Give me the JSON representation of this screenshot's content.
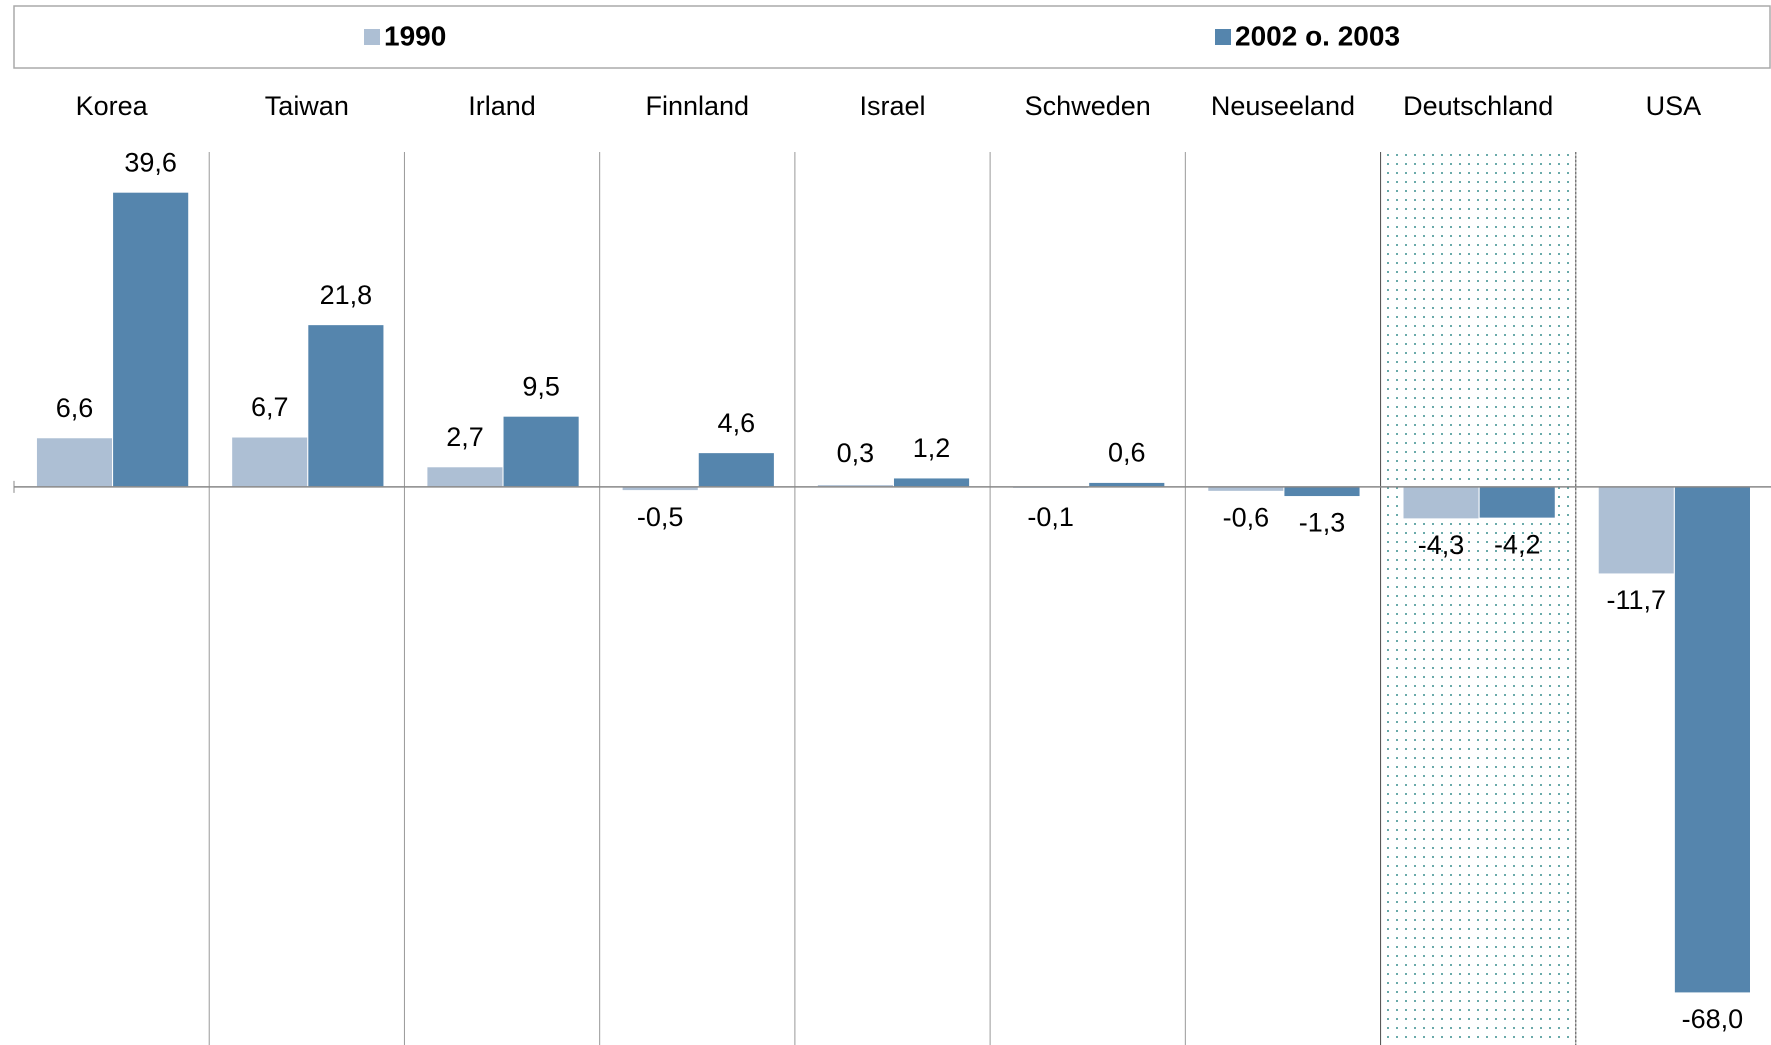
{
  "chart_data": {
    "type": "bar",
    "categories": [
      "Korea",
      "Taiwan",
      "Irland",
      "Finnland",
      "Israel",
      "Schweden",
      "Neuseeland",
      "Deutschland",
      "USA"
    ],
    "series": [
      {
        "name": "1990",
        "color": "#adbfd4",
        "values": [
          6.6,
          6.7,
          2.7,
          -0.5,
          0.3,
          -0.1,
          -0.6,
          -4.3,
          -11.7
        ],
        "value_labels": [
          "6,6",
          "6,7",
          "2,7",
          "-0,5",
          "0,3",
          "-0,1",
          "-0,6",
          "-4,3",
          "-11,7"
        ]
      },
      {
        "name": "2002 o. 2003",
        "color": "#5585ad",
        "values": [
          39.6,
          21.8,
          9.5,
          4.6,
          1.2,
          0.6,
          -1.3,
          -4.2,
          -68.0
        ],
        "value_labels": [
          "39,6",
          "21,8",
          "9,5",
          "4,6",
          "1,2",
          "0,6",
          "-1,3",
          "-4,2",
          "-68,0"
        ]
      }
    ],
    "ylim": [
      -75,
      45
    ],
    "highlight": "Deutschland",
    "legend": "top"
  }
}
